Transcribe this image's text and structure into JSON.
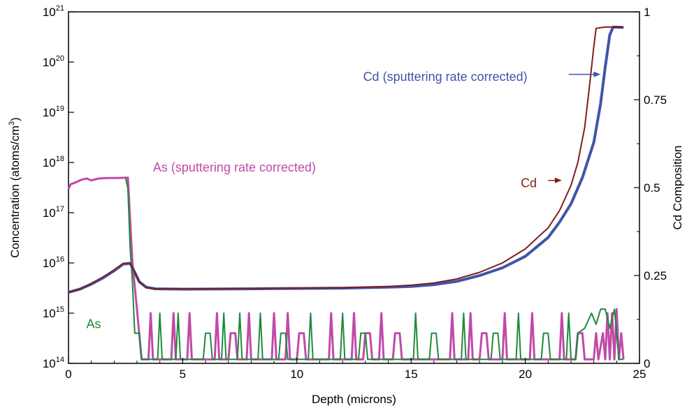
{
  "chart_data": {
    "type": "line",
    "xlabel": "Depth (microns)",
    "ylabel": {
      "text": "Concentration (atoms/cm",
      "sup": "3",
      "close": ")"
    },
    "y2label": "Cd Composition",
    "xlim": [
      0,
      25
    ],
    "ylim": [
      100000000000000.0,
      1e+21
    ],
    "y_scale": "log",
    "y2lim": [
      0,
      1
    ],
    "x_ticks": [
      "0",
      "5",
      "10",
      "15",
      "20",
      "25"
    ],
    "y_ticks": [
      {
        "base": "10",
        "exp": "14"
      },
      {
        "base": "10",
        "exp": "15"
      },
      {
        "base": "10",
        "exp": "16"
      },
      {
        "base": "10",
        "exp": "17"
      },
      {
        "base": "10",
        "exp": "18"
      },
      {
        "base": "10",
        "exp": "19"
      },
      {
        "base": "10",
        "exp": "20"
      },
      {
        "base": "10",
        "exp": "21"
      }
    ],
    "y2_ticks": [
      "0",
      "0.25",
      "0.5",
      "0.75",
      "1"
    ],
    "grid": false,
    "series": [
      {
        "name": "Cd (sputtering rate corrected)",
        "color": "#3f55a8",
        "axis": "y1",
        "points": [
          [
            0,
            2600000000000000.0
          ],
          [
            0.5,
            3000000000000000.0
          ],
          [
            1,
            3800000000000000.0
          ],
          [
            1.5,
            5000000000000000.0
          ],
          [
            2,
            7000000000000000.0
          ],
          [
            2.4,
            9500000000000000.0
          ],
          [
            2.7,
            9800000000000000.0
          ],
          [
            2.9,
            6500000000000000.0
          ],
          [
            3.1,
            4200000000000000.0
          ],
          [
            3.4,
            3300000000000000.0
          ],
          [
            3.8,
            3050000000000000.0
          ],
          [
            5,
            3000000000000000.0
          ],
          [
            8,
            3050000000000000.0
          ],
          [
            10,
            3100000000000000.0
          ],
          [
            12,
            3150000000000000.0
          ],
          [
            14,
            3300000000000000.0
          ],
          [
            15,
            3400000000000000.0
          ],
          [
            16,
            3700000000000000.0
          ],
          [
            17,
            4300000000000000.0
          ],
          [
            18,
            5600000000000000.0
          ],
          [
            19,
            8000000000000000.0
          ],
          [
            20,
            1.35e+16
          ],
          [
            21,
            3.2e+16
          ],
          [
            21.5,
            6.5e+16
          ],
          [
            22,
            1.5e+17
          ],
          [
            22.5,
            5e+17
          ],
          [
            23,
            2.5e+18
          ],
          [
            23.3,
            1.5e+19
          ],
          [
            23.5,
            8e+19
          ],
          [
            23.7,
            3.5e+20
          ],
          [
            23.85,
            5e+20
          ],
          [
            24.3,
            4.9e+20
          ]
        ]
      },
      {
        "name": "Cd",
        "color": "#7f1d1d",
        "axis": "y1",
        "points": [
          [
            0,
            2600000000000000.0
          ],
          [
            0.5,
            3000000000000000.0
          ],
          [
            1,
            3900000000000000.0
          ],
          [
            1.5,
            5200000000000000.0
          ],
          [
            2,
            7300000000000000.0
          ],
          [
            2.4,
            9800000000000000.0
          ],
          [
            2.7,
            1e+16
          ],
          [
            2.9,
            6600000000000000.0
          ],
          [
            3.1,
            4200000000000000.0
          ],
          [
            3.4,
            3200000000000000.0
          ],
          [
            3.8,
            3050000000000000.0
          ],
          [
            5,
            3050000000000000.0
          ],
          [
            8,
            3100000000000000.0
          ],
          [
            10,
            3150000000000000.0
          ],
          [
            12,
            3200000000000000.0
          ],
          [
            14,
            3400000000000000.0
          ],
          [
            15,
            3600000000000000.0
          ],
          [
            16,
            4000000000000000.0
          ],
          [
            17,
            4800000000000000.0
          ],
          [
            18,
            6500000000000000.0
          ],
          [
            19,
            1e+16
          ],
          [
            20,
            1.9e+16
          ],
          [
            21,
            5e+16
          ],
          [
            21.5,
            1.1e+17
          ],
          [
            22,
            3.5e+17
          ],
          [
            22.3,
            1e+18
          ],
          [
            22.6,
            5e+18
          ],
          [
            22.8,
            3e+19
          ],
          [
            23,
            2e+20
          ],
          [
            23.1,
            4.7e+20
          ],
          [
            23.5,
            5e+20
          ],
          [
            24,
            5e+20
          ],
          [
            24.3,
            4.9e+20
          ]
        ]
      },
      {
        "name": "As (sputtering rate corrected)",
        "color": "#c04aa8",
        "axis": "y1",
        "points": [
          [
            0,
            3e+17
          ],
          [
            0.1,
            3.7e+17
          ],
          [
            0.3,
            4e+17
          ],
          [
            0.6,
            4.6e+17
          ],
          [
            0.8,
            4.8e+17
          ],
          [
            1,
            4.4e+17
          ],
          [
            1.3,
            4.8e+17
          ],
          [
            1.7,
            4.9e+17
          ],
          [
            2.1,
            4.9e+17
          ],
          [
            2.6,
            5e+17
          ],
          [
            2.8,
            1e+16
          ],
          [
            3.0,
            1200000000000000.0
          ],
          [
            3.2,
            120000000000000.0
          ],
          [
            3.5,
            120000000000000.0
          ],
          [
            3.6,
            1000000000000000.0
          ],
          [
            3.7,
            120000000000000.0
          ],
          [
            4.5,
            120000000000000.0
          ],
          [
            4.6,
            1000000000000000.0
          ],
          [
            4.7,
            120000000000000.0
          ],
          [
            5.2,
            120000000000000.0
          ],
          [
            5.3,
            1000000000000000.0
          ],
          [
            5.4,
            120000000000000.0
          ],
          [
            6.4,
            120000000000000.0
          ],
          [
            6.5,
            1000000000000000.0
          ],
          [
            6.6,
            120000000000000.0
          ],
          [
            7.0,
            120000000000000.0
          ],
          [
            7.1,
            400000000000000.0
          ],
          [
            7.3,
            400000000000000.0
          ],
          [
            7.4,
            120000000000000.0
          ],
          [
            7.8,
            120000000000000.0
          ],
          [
            7.9,
            1000000000000000.0
          ],
          [
            8.0,
            120000000000000.0
          ],
          [
            8.9,
            120000000000000.0
          ],
          [
            9.0,
            1000000000000000.0
          ],
          [
            9.1,
            120000000000000.0
          ],
          [
            9.5,
            120000000000000.0
          ],
          [
            9.6,
            1000000000000000.0
          ],
          [
            9.7,
            120000000000000.0
          ],
          [
            10.0,
            120000000000000.0
          ],
          [
            10.1,
            400000000000000.0
          ],
          [
            10.3,
            400000000000000.0
          ],
          [
            10.4,
            120000000000000.0
          ],
          [
            11.4,
            120000000000000.0
          ],
          [
            11.5,
            1000000000000000.0
          ],
          [
            11.6,
            120000000000000.0
          ],
          [
            12.4,
            120000000000000.0
          ],
          [
            12.5,
            1000000000000000.0
          ],
          [
            12.6,
            120000000000000.0
          ],
          [
            12.9,
            120000000000000.0
          ],
          [
            13.0,
            400000000000000.0
          ],
          [
            13.2,
            400000000000000.0
          ],
          [
            13.3,
            120000000000000.0
          ],
          [
            13.6,
            120000000000000.0
          ],
          [
            13.7,
            1000000000000000.0
          ],
          [
            13.8,
            120000000000000.0
          ],
          [
            14.2,
            120000000000000.0
          ],
          [
            14.3,
            400000000000000.0
          ],
          [
            14.5,
            400000000000000.0
          ],
          [
            14.6,
            120000000000000.0
          ],
          [
            16.7,
            120000000000000.0
          ],
          [
            16.8,
            1000000000000000.0
          ],
          [
            16.9,
            120000000000000.0
          ],
          [
            17.5,
            120000000000000.0
          ],
          [
            17.6,
            1000000000000000.0
          ],
          [
            17.7,
            120000000000000.0
          ],
          [
            18.0,
            120000000000000.0
          ],
          [
            18.1,
            400000000000000.0
          ],
          [
            18.3,
            400000000000000.0
          ],
          [
            18.4,
            120000000000000.0
          ],
          [
            19.0,
            120000000000000.0
          ],
          [
            19.1,
            1000000000000000.0
          ],
          [
            19.2,
            120000000000000.0
          ],
          [
            20.2,
            120000000000000.0
          ],
          [
            20.3,
            1000000000000000.0
          ],
          [
            20.4,
            120000000000000.0
          ],
          [
            21.5,
            120000000000000.0
          ],
          [
            21.6,
            1000000000000000.0
          ],
          [
            21.7,
            120000000000000.0
          ],
          [
            22.2,
            120000000000000.0
          ],
          [
            22.3,
            400000000000000.0
          ],
          [
            22.5,
            400000000000000.0
          ],
          [
            22.6,
            120000000000000.0
          ],
          [
            23.0,
            120000000000000.0
          ],
          [
            23.1,
            400000000000000.0
          ],
          [
            23.2,
            120000000000000.0
          ],
          [
            23.4,
            400000000000000.0
          ],
          [
            23.5,
            120000000000000.0
          ],
          [
            23.6,
            1000000000000000.0
          ],
          [
            23.7,
            120000000000000.0
          ],
          [
            23.8,
            1000000000000000.0
          ],
          [
            23.9,
            120000000000000.0
          ],
          [
            24.0,
            1200000000000000.0
          ],
          [
            24.1,
            120000000000000.0
          ],
          [
            24.2,
            400000000000000.0
          ],
          [
            24.3,
            120000000000000.0
          ]
        ]
      },
      {
        "name": "As",
        "color": "#1f8a3b",
        "axis": "y1",
        "points": [
          [
            2.5,
            5e+17
          ],
          [
            2.6,
            3e+17
          ],
          [
            2.7,
            2e+16
          ],
          [
            2.8,
            4000000000000000.0
          ],
          [
            2.9,
            400000000000000.0
          ],
          [
            3.1,
            400000000000000.0
          ],
          [
            3.2,
            120000000000000.0
          ],
          [
            3.9,
            120000000000000.0
          ],
          [
            4.0,
            1000000000000000.0
          ],
          [
            4.1,
            120000000000000.0
          ],
          [
            4.7,
            120000000000000.0
          ],
          [
            4.8,
            1000000000000000.0
          ],
          [
            4.9,
            120000000000000.0
          ],
          [
            5.9,
            120000000000000.0
          ],
          [
            6.0,
            400000000000000.0
          ],
          [
            6.2,
            400000000000000.0
          ],
          [
            6.3,
            120000000000000.0
          ],
          [
            6.7,
            120000000000000.0
          ],
          [
            6.8,
            1000000000000000.0
          ],
          [
            6.9,
            120000000000000.0
          ],
          [
            7.4,
            120000000000000.0
          ],
          [
            7.5,
            1000000000000000.0
          ],
          [
            7.6,
            120000000000000.0
          ],
          [
            8.3,
            120000000000000.0
          ],
          [
            8.4,
            1000000000000000.0
          ],
          [
            8.5,
            120000000000000.0
          ],
          [
            9.2,
            120000000000000.0
          ],
          [
            9.3,
            400000000000000.0
          ],
          [
            9.5,
            400000000000000.0
          ],
          [
            9.6,
            120000000000000.0
          ],
          [
            10.5,
            120000000000000.0
          ],
          [
            10.6,
            1000000000000000.0
          ],
          [
            10.7,
            120000000000000.0
          ],
          [
            11.9,
            120000000000000.0
          ],
          [
            12.0,
            1000000000000000.0
          ],
          [
            12.1,
            120000000000000.0
          ],
          [
            12.7,
            120000000000000.0
          ],
          [
            12.8,
            400000000000000.0
          ],
          [
            13.0,
            400000000000000.0
          ],
          [
            13.1,
            120000000000000.0
          ],
          [
            15.1,
            120000000000000.0
          ],
          [
            15.2,
            1000000000000000.0
          ],
          [
            15.3,
            120000000000000.0
          ],
          [
            15.8,
            120000000000000.0
          ],
          [
            15.9,
            400000000000000.0
          ],
          [
            16.1,
            400000000000000.0
          ],
          [
            16.2,
            120000000000000.0
          ],
          [
            17.2,
            120000000000000.0
          ],
          [
            17.3,
            1000000000000000.0
          ],
          [
            17.4,
            120000000000000.0
          ],
          [
            18.5,
            120000000000000.0
          ],
          [
            18.6,
            400000000000000.0
          ],
          [
            18.8,
            400000000000000.0
          ],
          [
            18.9,
            120000000000000.0
          ],
          [
            19.6,
            120000000000000.0
          ],
          [
            19.7,
            1000000000000000.0
          ],
          [
            19.8,
            120000000000000.0
          ],
          [
            20.7,
            120000000000000.0
          ],
          [
            20.8,
            400000000000000.0
          ],
          [
            21.0,
            400000000000000.0
          ],
          [
            21.1,
            120000000000000.0
          ],
          [
            21.8,
            120000000000000.0
          ],
          [
            21.9,
            1000000000000000.0
          ],
          [
            22.0,
            120000000000000.0
          ],
          [
            22.2,
            120000000000000.0
          ],
          [
            22.3,
            400000000000000.0
          ],
          [
            22.6,
            500000000000000.0
          ],
          [
            22.9,
            1000000000000000.0
          ],
          [
            23.1,
            600000000000000.0
          ],
          [
            23.3,
            1200000000000000.0
          ],
          [
            23.5,
            1200000000000000.0
          ],
          [
            23.7,
            500000000000000.0
          ],
          [
            23.9,
            1200000000000000.0
          ],
          [
            24.1,
            120000000000000.0
          ],
          [
            24.3,
            120000000000000.0
          ]
        ]
      }
    ],
    "annotations": [
      {
        "text": "Cd (sputtering rate corrected)",
        "color": "#3f55a8",
        "arrow": true
      },
      {
        "text": "Cd",
        "color": "#7f1d1d",
        "arrow": true
      },
      {
        "text": "As (sputtering rate corrected)",
        "color": "#c04aa8",
        "arrow": false
      },
      {
        "text": "As",
        "color": "#1f8a3b",
        "arrow": false
      }
    ]
  }
}
